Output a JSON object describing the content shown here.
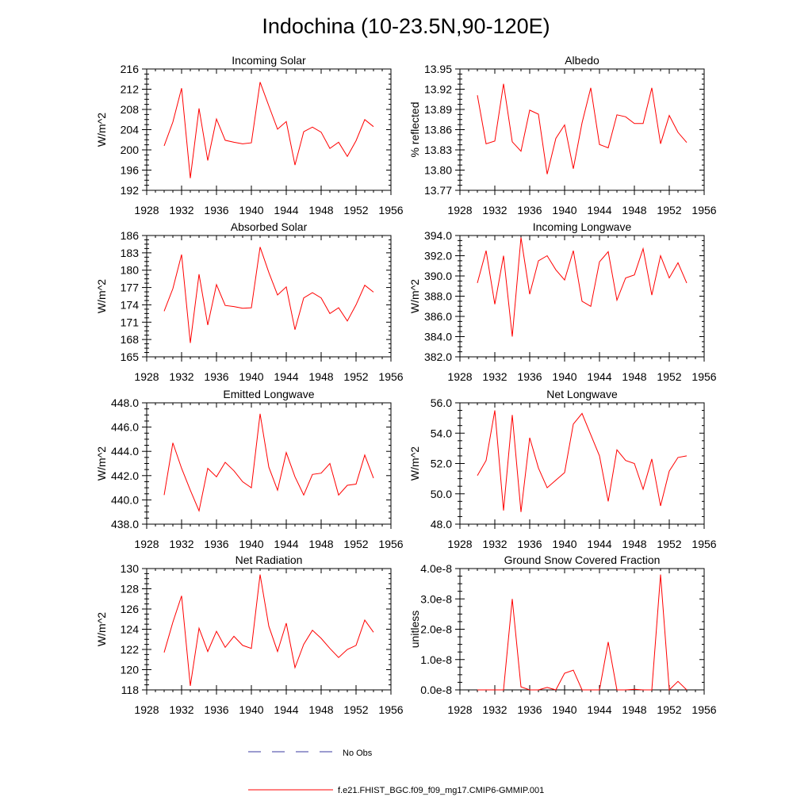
{
  "title": "Indochina (10-23.5N,90-120E)",
  "x_ticks": [
    1928,
    1932,
    1936,
    1940,
    1944,
    1948,
    1952,
    1956
  ],
  "years": [
    1930,
    1931,
    1932,
    1933,
    1934,
    1935,
    1936,
    1937,
    1938,
    1939,
    1940,
    1941,
    1942,
    1943,
    1944,
    1945,
    1946,
    1947,
    1948,
    1949,
    1950,
    1951,
    1952,
    1953,
    1954
  ],
  "legend": [
    {
      "label": "No Obs",
      "color": "#3a3aa0",
      "style": "dashed"
    },
    {
      "label": "f.e21.FHIST_BGC.f09_f09_mg17.CMIP6-GMMIP.001",
      "color": "#ff0000",
      "style": "solid"
    }
  ],
  "series_color": "#ff0000",
  "chart_data": [
    {
      "type": "line",
      "title": "Incoming Solar",
      "ylabel": "W/m^2",
      "ylim": [
        192,
        216
      ],
      "yticks": [
        "192",
        "196",
        "200",
        "204",
        "208",
        "212",
        "216"
      ],
      "xlim": [
        1928,
        1956
      ],
      "series": [
        {
          "values": [
            200.8,
            205.5,
            212.2,
            194.4,
            208.2,
            197.9,
            206.1,
            201.9,
            201.5,
            201.2,
            201.4,
            213.4,
            208.7,
            204.1,
            205.6,
            197.0,
            203.6,
            204.5,
            203.5,
            200.3,
            201.5,
            198.7,
            201.8,
            206.0,
            204.6
          ]
        }
      ]
    },
    {
      "type": "line",
      "title": "Albedo",
      "ylabel": "% reflected",
      "ylim": [
        13.77,
        13.95
      ],
      "yticks": [
        "13.77",
        "13.80",
        "13.83",
        "13.86",
        "13.89",
        "13.92",
        "13.95"
      ],
      "xlim": [
        1928,
        1956
      ],
      "series": [
        {
          "values": [
            13.911,
            13.839,
            13.843,
            13.928,
            13.842,
            13.828,
            13.889,
            13.883,
            13.794,
            13.847,
            13.867,
            13.802,
            13.87,
            13.922,
            13.838,
            13.833,
            13.882,
            13.879,
            13.869,
            13.869,
            13.922,
            13.839,
            13.881,
            13.856,
            13.841
          ]
        }
      ]
    },
    {
      "type": "line",
      "title": "Absorbed Solar",
      "ylabel": "W/m^2",
      "ylim": [
        165,
        186
      ],
      "yticks": [
        "165",
        "168",
        "171",
        "174",
        "177",
        "180",
        "183",
        "186"
      ],
      "xlim": [
        1928,
        1956
      ],
      "series": [
        {
          "values": [
            172.9,
            176.8,
            182.7,
            167.4,
            179.3,
            170.5,
            177.5,
            173.9,
            173.7,
            173.4,
            173.5,
            184.0,
            179.6,
            175.7,
            177.1,
            169.7,
            175.2,
            176.1,
            175.2,
            172.5,
            173.5,
            171.2,
            174.0,
            177.4,
            176.2
          ]
        }
      ]
    },
    {
      "type": "line",
      "title": "Incoming Longwave",
      "ylabel": "W/m^2",
      "ylim": [
        382.0,
        394.0
      ],
      "yticks": [
        "382.0",
        "384.0",
        "386.0",
        "388.0",
        "390.0",
        "392.0",
        "394.0"
      ],
      "xlim": [
        1928,
        1956
      ],
      "series": [
        {
          "values": [
            389.3,
            392.5,
            387.2,
            392.0,
            384.0,
            393.8,
            388.2,
            391.5,
            392.0,
            390.6,
            389.6,
            392.5,
            387.5,
            387.0,
            391.4,
            392.4,
            387.6,
            389.8,
            390.1,
            392.7,
            388.1,
            392.0,
            389.8,
            391.3,
            389.3
          ]
        }
      ]
    },
    {
      "type": "line",
      "title": "Emitted Longwave",
      "ylabel": "W/m^2",
      "ylim": [
        438.0,
        448.0
      ],
      "yticks": [
        "438.0",
        "440.0",
        "442.0",
        "444.0",
        "446.0",
        "448.0"
      ],
      "xlim": [
        1928,
        1956
      ],
      "series": [
        {
          "values": [
            440.4,
            444.7,
            442.6,
            440.8,
            439.1,
            442.6,
            441.9,
            443.1,
            442.4,
            441.5,
            441.0,
            447.1,
            442.7,
            440.8,
            443.9,
            441.9,
            440.4,
            442.1,
            442.2,
            443.0,
            440.4,
            441.2,
            441.3,
            443.7,
            441.8
          ]
        }
      ]
    },
    {
      "type": "line",
      "title": "Net Longwave",
      "ylabel": "W/m^2",
      "ylim": [
        48.0,
        56.0
      ],
      "yticks": [
        "48.0",
        "50.0",
        "52.0",
        "54.0",
        "56.0"
      ],
      "xlim": [
        1928,
        1956
      ],
      "series": [
        {
          "values": [
            51.2,
            52.2,
            55.5,
            48.9,
            55.2,
            48.8,
            53.7,
            51.7,
            50.4,
            50.9,
            51.4,
            54.6,
            55.3,
            53.9,
            52.5,
            49.5,
            52.9,
            52.2,
            52.0,
            50.3,
            52.3,
            49.2,
            51.5,
            52.4,
            52.5
          ]
        }
      ]
    },
    {
      "type": "line",
      "title": "Net Radiation",
      "ylabel": "W/m^2",
      "ylim": [
        118,
        130
      ],
      "yticks": [
        "118",
        "120",
        "122",
        "124",
        "126",
        "128",
        "130"
      ],
      "xlim": [
        1928,
        1956
      ],
      "series": [
        {
          "values": [
            121.7,
            124.7,
            127.3,
            118.4,
            124.1,
            121.8,
            123.8,
            122.2,
            123.3,
            122.4,
            122.1,
            129.4,
            124.3,
            121.8,
            124.6,
            120.2,
            122.5,
            123.9,
            123.1,
            122.1,
            121.2,
            122.0,
            122.4,
            124.9,
            123.7
          ]
        }
      ]
    },
    {
      "type": "line",
      "title": "Ground Snow Covered Fraction",
      "ylabel": "unitless",
      "ylim": [
        0,
        4e-08
      ],
      "yticks": [
        "0.0e-8",
        "1.0e-8",
        "2.0e-8",
        "3.0e-8",
        "4.0e-8"
      ],
      "xlim": [
        1928,
        1956
      ],
      "series": [
        {
          "values": [
            0,
            0,
            0,
            0,
            3e-08,
            1e-09,
            0,
            0,
            8e-10,
            0,
            5.5e-09,
            6.5e-09,
            0,
            0,
            0,
            1.58e-08,
            0,
            0,
            2e-10,
            0,
            0,
            3.8e-08,
            0,
            2.8e-09,
            0
          ]
        }
      ]
    }
  ]
}
